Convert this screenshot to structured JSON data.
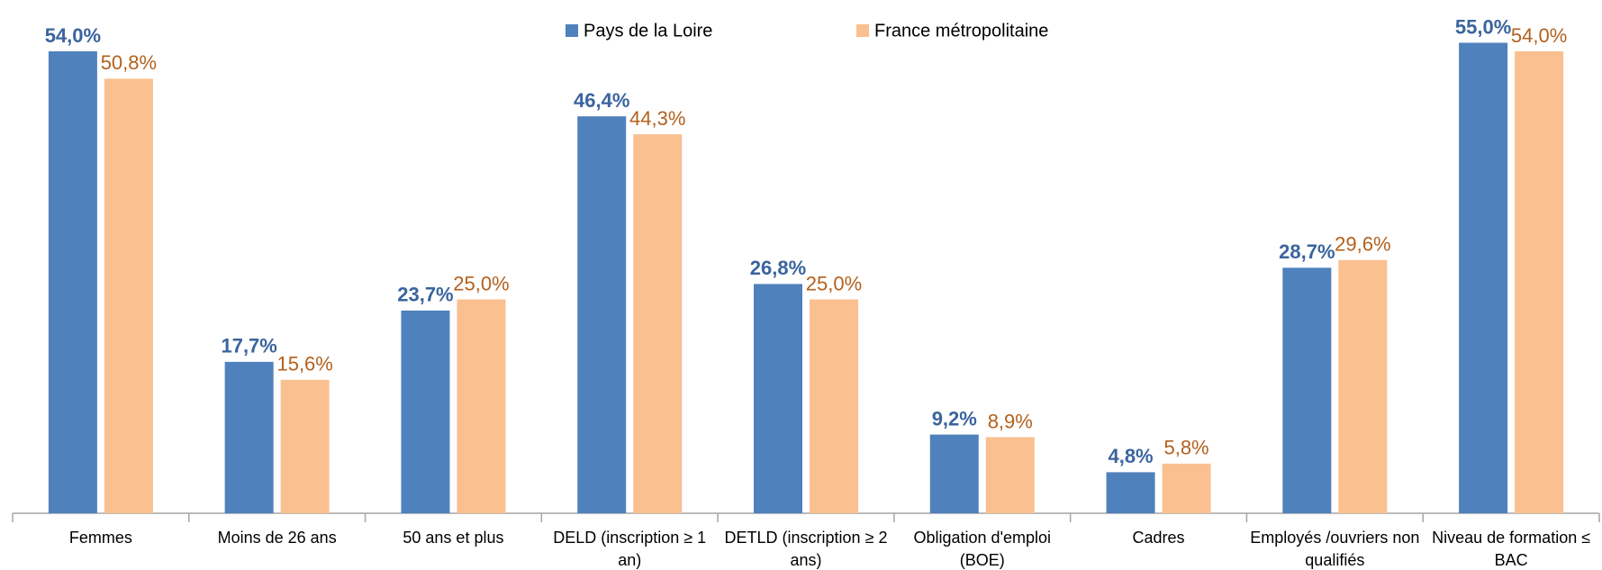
{
  "chart_data": {
    "type": "bar",
    "categories": [
      "Femmes",
      "Moins de 26 ans",
      "50 ans et plus",
      "DELD (inscription ≥ 1 an)",
      "DETLD (inscription ≥ 2 ans)",
      "Obligation d'emploi (BOE)",
      "Cadres",
      "Employés /ouvriers non qualifiés",
      "Niveau de formation ≤ BAC"
    ],
    "series": [
      {
        "name": "Pays de la Loire",
        "color": "#4f81bd",
        "label_color": "#3a649e",
        "values": [
          54.0,
          17.7,
          23.7,
          46.4,
          26.8,
          9.2,
          4.8,
          28.7,
          55.0
        ],
        "value_labels": [
          "54,0%",
          "17,7%",
          "23,7%",
          "46,4%",
          "26,8%",
          "9,2%",
          "4,8%",
          "28,7%",
          "55,0%"
        ]
      },
      {
        "name": "France métropolitaine",
        "color": "#fac090",
        "label_color": "#b3611e",
        "values": [
          50.8,
          15.6,
          25.0,
          44.3,
          25.0,
          8.9,
          5.8,
          29.6,
          54.0
        ],
        "value_labels": [
          "50,8%",
          "15,6%",
          "25,0%",
          "44,3%",
          "25,0%",
          "8,9%",
          "5,8%",
          "29,6%",
          "54,0%"
        ]
      }
    ],
    "ylim": [
      0,
      60
    ],
    "legend": "top",
    "grid": false
  }
}
